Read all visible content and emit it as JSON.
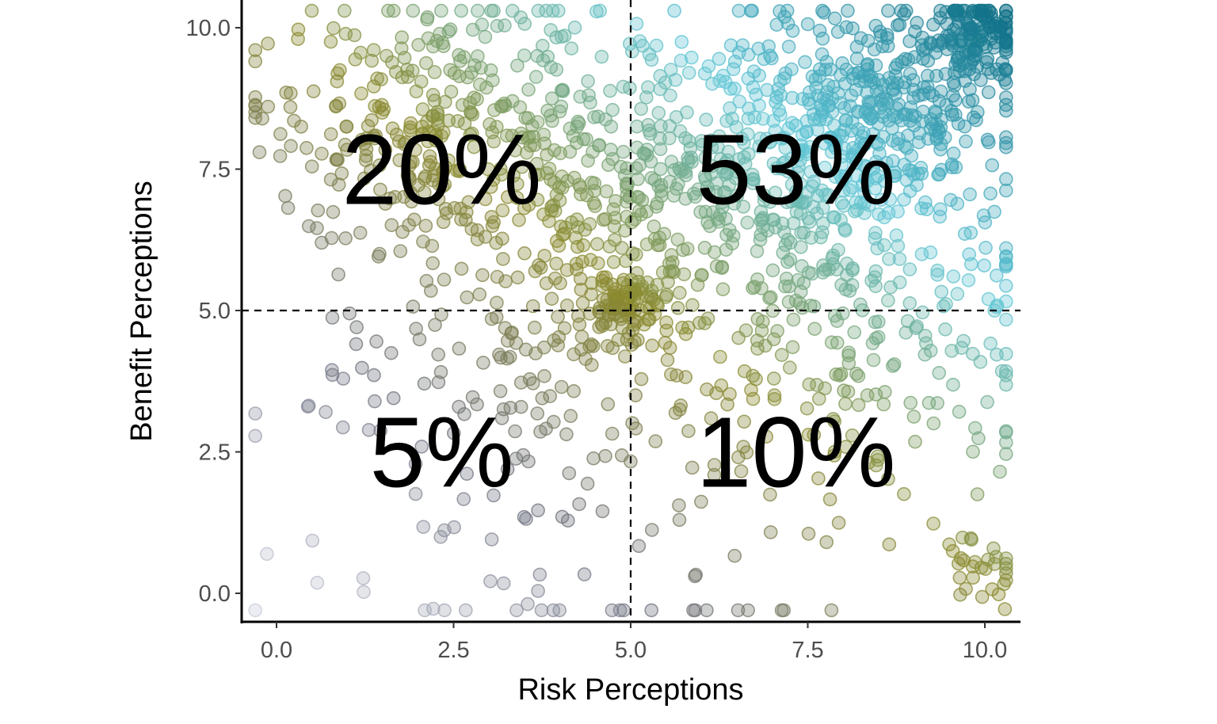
{
  "chart_data": {
    "type": "scatter",
    "title": "",
    "xlabel": "Risk Perceptions",
    "ylabel": "Benefit Perceptions",
    "xlim": [
      -0.25,
      10.25
    ],
    "ylim": [
      -0.25,
      10.25
    ],
    "x_ticks": [
      "0.0",
      "2.5",
      "5.0",
      "7.5",
      "10.0"
    ],
    "y_ticks": [
      "0.0",
      "2.5",
      "5.0",
      "7.5",
      "10.0"
    ],
    "reference_lines": {
      "x": 5.0,
      "y": 5.0
    },
    "quadrant_labels": [
      {
        "quadrant": "low-risk-high-benefit",
        "text": "20%",
        "x": 2.5,
        "y": 7.5
      },
      {
        "quadrant": "high-risk-high-benefit",
        "text": "53%",
        "x": 7.5,
        "y": 7.5
      },
      {
        "quadrant": "low-risk-low-benefit",
        "text": "5%",
        "x": 2.5,
        "y": 2.5
      },
      {
        "quadrant": "high-risk-low-benefit",
        "text": "10%",
        "x": 7.5,
        "y": 2.5
      }
    ],
    "point_color_scale": [
      "#c9ccd9",
      "#6f7280",
      "#8b8a2e",
      "#5fc6d6",
      "#0e6f86"
    ],
    "point_clusters": [
      {
        "x": 9.9,
        "y": 9.9,
        "spread": 0.35,
        "count": 130
      },
      {
        "x": 8.6,
        "y": 8.6,
        "spread": 0.9,
        "count": 300
      },
      {
        "x": 7.0,
        "y": 7.2,
        "spread": 1.2,
        "count": 320
      },
      {
        "x": 5.0,
        "y": 5.0,
        "spread": 0.3,
        "count": 80
      },
      {
        "x": 4.2,
        "y": 7.5,
        "spread": 1.4,
        "count": 300
      },
      {
        "x": 2.0,
        "y": 8.5,
        "spread": 1.3,
        "count": 230
      },
      {
        "x": 8.5,
        "y": 4.5,
        "spread": 1.3,
        "count": 170
      },
      {
        "x": 3.5,
        "y": 4.0,
        "spread": 1.4,
        "count": 110
      },
      {
        "x": 5.0,
        "y": 2.5,
        "spread": 2.6,
        "count": 140
      },
      {
        "x": 9.9,
        "y": 0.5,
        "spread": 0.35,
        "count": 30
      }
    ]
  }
}
